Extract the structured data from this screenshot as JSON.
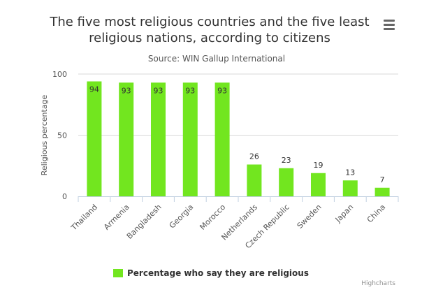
{
  "header": {
    "title_line1": "The five most religious countries and the five least",
    "title_line2": "religious nations, according to citizens",
    "subtitle": "Source: WIN Gallup International"
  },
  "menu": {
    "icon": "hamburger-menu-icon"
  },
  "credits": "Highcharts",
  "colors": {
    "bar": "#72E61F",
    "grid": "#D8D8D8",
    "axis": "#C0D0E0"
  },
  "chart_data": {
    "type": "bar",
    "title": "The five most religious countries and the five least religious nations, according to citizens",
    "subtitle": "Source: WIN Gallup International",
    "categories": [
      "Thailand",
      "Armenia",
      "Bangladesh",
      "Georgia",
      "Morocco",
      "Netherlands",
      "Czech Republic",
      "Sweden",
      "Japan",
      "China"
    ],
    "series": [
      {
        "name": "Percentage who say they are religious",
        "values": [
          94,
          93,
          93,
          93,
          93,
          26,
          23,
          19,
          13,
          7
        ]
      }
    ],
    "ylabel": "Religious percentage",
    "xlabel": "",
    "ylim": [
      0,
      100
    ],
    "yticks": [
      0,
      50,
      100
    ],
    "grid": true,
    "legend": "bottom-center"
  }
}
